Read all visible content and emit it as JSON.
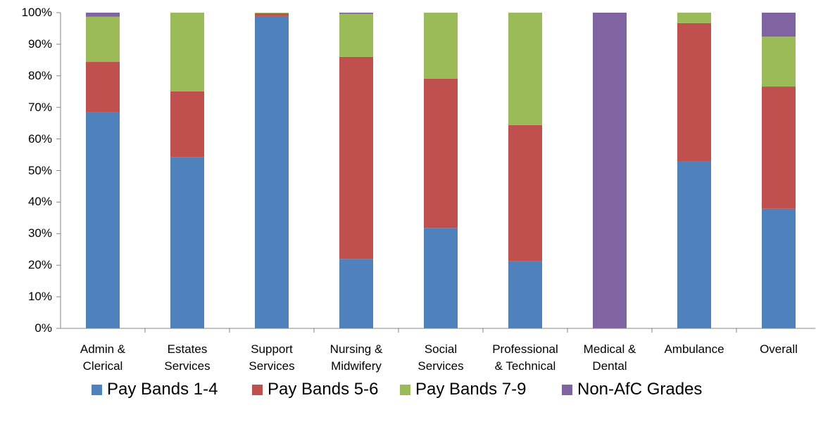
{
  "chart_data": {
    "type": "stacked-bar",
    "categories": [
      "Admin &\nClerical",
      "Estates\nServices",
      "Support\nServices",
      "Nursing &\nMidwifery",
      "Social\nServices",
      "Professional\n& Technical",
      "Medical &\nDental",
      "Ambulance",
      "Overall"
    ],
    "series": [
      {
        "name": "Pay Bands 1-4",
        "color": "#4f81bd",
        "values": [
          68.4,
          54.3,
          98.9,
          22.0,
          31.8,
          21.2,
          0,
          53.0,
          37.9
        ]
      },
      {
        "name": "Pay Bands 5-6",
        "color": "#c0504d",
        "values": [
          16.0,
          20.8,
          0.9,
          64.0,
          47.3,
          43.2,
          0,
          43.7,
          38.7
        ]
      },
      {
        "name": "Pay Bands 7-9",
        "color": "#9bbb59",
        "values": [
          14.3,
          24.9,
          0.2,
          13.6,
          20.9,
          35.6,
          0,
          3.3,
          15.8
        ]
      },
      {
        "name": "Non-AfC Grades",
        "color": "#8064a2",
        "values": [
          1.3,
          0,
          0,
          0.4,
          0,
          0,
          100,
          0,
          7.6
        ]
      }
    ],
    "ylim": [
      0,
      100
    ],
    "yticks": [
      {
        "value": 0,
        "label": "0%"
      },
      {
        "value": 10,
        "label": "10%"
      },
      {
        "value": 20,
        "label": "20%"
      },
      {
        "value": 30,
        "label": "30%"
      },
      {
        "value": 40,
        "label": "40%"
      },
      {
        "value": 50,
        "label": "50%"
      },
      {
        "value": 60,
        "label": "60%"
      },
      {
        "value": 70,
        "label": "70%"
      },
      {
        "value": 80,
        "label": "80%"
      },
      {
        "value": 90,
        "label": "90%"
      },
      {
        "value": 100,
        "label": "100%"
      }
    ],
    "legend": "bottom"
  }
}
